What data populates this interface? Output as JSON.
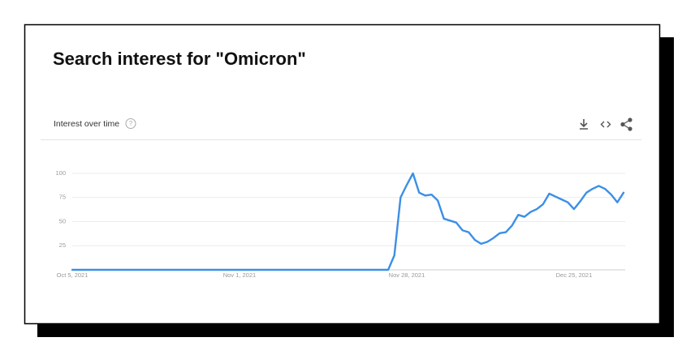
{
  "chart_data": {
    "type": "line",
    "title": "Search interest for \"Omicron\"",
    "subtitle": "Interest over time",
    "categories": [
      "Oct 5, 2021",
      null,
      null,
      null,
      null,
      null,
      null,
      null,
      null,
      null,
      null,
      null,
      null,
      null,
      null,
      null,
      null,
      null,
      null,
      null,
      null,
      null,
      null,
      null,
      null,
      null,
      null,
      "Nov 1, 2021",
      null,
      null,
      null,
      null,
      null,
      null,
      null,
      null,
      null,
      null,
      null,
      null,
      null,
      null,
      null,
      null,
      null,
      null,
      null,
      null,
      null,
      null,
      null,
      null,
      null,
      null,
      "Nov 28, 2021",
      null,
      null,
      null,
      null,
      null,
      null,
      null,
      null,
      null,
      null,
      null,
      null,
      null,
      null,
      null,
      null,
      null,
      null,
      null,
      null,
      null,
      null,
      null,
      null,
      null,
      null,
      "Dec 25, 2021",
      null,
      null,
      null,
      null,
      null,
      null,
      null,
      null
    ],
    "values": [
      0,
      0,
      0,
      0,
      0,
      0,
      0,
      0,
      0,
      0,
      0,
      0,
      0,
      0,
      0,
      0,
      0,
      0,
      0,
      0,
      0,
      0,
      0,
      0,
      0,
      0,
      0,
      0,
      0,
      0,
      0,
      0,
      0,
      0,
      0,
      0,
      0,
      0,
      0,
      0,
      0,
      0,
      0,
      0,
      0,
      0,
      0,
      0,
      0,
      0,
      0,
      0,
      15,
      75,
      88,
      100,
      80,
      77,
      78,
      72,
      53,
      51,
      49,
      41,
      39,
      31,
      27,
      29,
      33,
      38,
      39,
      46,
      57,
      55,
      60,
      63,
      68,
      79,
      76,
      73,
      70,
      63,
      71,
      80,
      84,
      87,
      84,
      78,
      70,
      80
    ],
    "color": "#3b8fe6",
    "ylim": [
      0,
      100
    ],
    "yticks": [
      25,
      50,
      75,
      100
    ],
    "grid": true
  }
}
